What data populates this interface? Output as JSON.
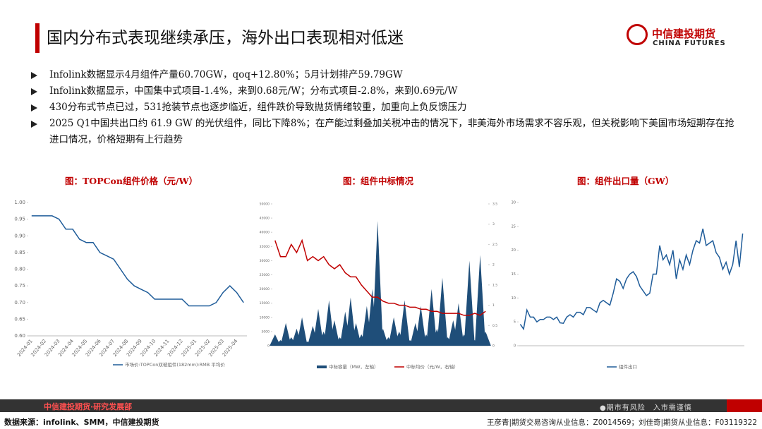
{
  "header": {
    "title": "国内分布式表现继续承压，海外出口表现相对低迷",
    "logo_name": "中信建投期货",
    "logo_en": "CHINA FUTURES"
  },
  "bullets": [
    "Infolink数据显示4月组件产量60.70GW，qoq+12.80%；5月计划排产59.79GW",
    "Infolink数据显示，中国集中式项目-1.4%，来到0.68元/W；分布式项目-2.8%，来到0.69元/W",
    "430分布式节点已过，531抢装节点也逐步临近，组件跌价导致抛货情绪较重，加重向上负反馈压力",
    "2025 Q1中国共出口约 61.9 GW 的光伏组件，同比下降8%；在产能过剩叠加关税冲击的情况下，非美海外市场需求不容乐观，但关税影响下美国市场短期存在抢进口情况，价格短期有上行趋势"
  ],
  "chart_data": [
    {
      "type": "line",
      "title": "图：TOPCon组件价格（元/W）",
      "categories": [
        "2024-01",
        null,
        "2024-02",
        null,
        "2024-03",
        null,
        "2024-04",
        null,
        "2024-05",
        null,
        "2024-06",
        null,
        "2024-07",
        null,
        "2024-08",
        null,
        "2024-09",
        null,
        "2024-10",
        null,
        "2024-11",
        null,
        "2024-12",
        null,
        "2025-01",
        null,
        "2025-02",
        null,
        "2025-03",
        null,
        "2025-04",
        null
      ],
      "series": [
        {
          "name": "市场价:TOPCon双玻组件(182mm):RMB 平均价",
          "color": "#1f5c99",
          "values": [
            0.96,
            0.96,
            0.96,
            0.96,
            0.95,
            0.92,
            0.92,
            0.89,
            0.88,
            0.88,
            0.85,
            0.84,
            0.83,
            0.8,
            0.77,
            0.75,
            0.74,
            0.73,
            0.71,
            0.71,
            0.71,
            0.71,
            0.71,
            0.69,
            0.69,
            0.69,
            0.69,
            0.7,
            0.73,
            0.75,
            0.73,
            0.7
          ]
        }
      ],
      "ylim": [
        0.6,
        1.0
      ],
      "yticks": [
        {
          "value": 0.6,
          "label": "0.60"
        },
        {
          "value": 0.65,
          "label": "0.65"
        },
        {
          "value": 0.7,
          "label": "0.70"
        },
        {
          "value": 0.75,
          "label": "0.75"
        },
        {
          "value": 0.8,
          "label": "0.80"
        },
        {
          "value": 0.85,
          "label": "0.85"
        },
        {
          "value": 0.9,
          "label": "0.90"
        },
        {
          "value": 0.95,
          "label": "0.95"
        },
        {
          "value": 1.0,
          "label": "1.00"
        }
      ]
    },
    {
      "type": "combo",
      "title": "图：组件中标情况",
      "categories": [
        null,
        null,
        null,
        null,
        null,
        null,
        null,
        null,
        null,
        null,
        null,
        null,
        null,
        null,
        null,
        null,
        null,
        null,
        null,
        null,
        null,
        null,
        null,
        null,
        null,
        null,
        null,
        null,
        null,
        null,
        null,
        null,
        null,
        null,
        null,
        null,
        null,
        null,
        null,
        null
      ],
      "series": [
        {
          "name": "中标容量（MW，左轴）",
          "color": "#1f4e79",
          "type": "bar",
          "values": [
            4000,
            2000,
            8000,
            3000,
            6000,
            10000,
            1500,
            7000,
            13000,
            5000,
            16000,
            9000,
            3000,
            12000,
            17000,
            8000,
            4000,
            14000,
            20000,
            44000,
            6000,
            3000,
            10000,
            5000,
            16000,
            2000,
            8000,
            14000,
            4000,
            20000,
            6000,
            24000,
            3000,
            9000,
            15000,
            4000,
            30000,
            2000,
            32000,
            5000
          ]
        },
        {
          "name": "中标均价（元/W，右轴）",
          "color": "#c00000",
          "type": "line",
          "axis": "y2",
          "values": [
            2.6,
            2.2,
            2.2,
            2.5,
            2.3,
            2.6,
            2.1,
            2.2,
            2.1,
            2.2,
            2.0,
            1.9,
            2.0,
            1.8,
            1.7,
            1.7,
            1.5,
            1.35,
            1.2,
            1.2,
            1.1,
            1.05,
            1.05,
            1.0,
            1.0,
            0.95,
            0.95,
            0.9,
            0.9,
            0.85,
            0.85,
            0.8,
            0.8,
            0.8,
            0.8,
            0.75,
            0.75,
            0.8,
            0.75,
            0.85
          ]
        }
      ],
      "ylim": [
        0,
        50000
      ],
      "yticks": [
        0,
        5000,
        10000,
        15000,
        20000,
        25000,
        30000,
        35000,
        40000,
        45000,
        50000
      ],
      "y2lim": [
        0,
        3.5
      ],
      "y2ticks": [
        0,
        0.5,
        1,
        1.5,
        2,
        2.5,
        3,
        3.5
      ]
    },
    {
      "type": "line",
      "title": "图：组件出口量（GW）",
      "categories": [
        null,
        null,
        null,
        null,
        null,
        null,
        null,
        null,
        null,
        null,
        null,
        null,
        null,
        null,
        null,
        null,
        null,
        null,
        null,
        null,
        null,
        null,
        null,
        null,
        null,
        null,
        null,
        null,
        null,
        null,
        null,
        null,
        null,
        null,
        null,
        null,
        null,
        null,
        null,
        null,
        null,
        null,
        null,
        null,
        null,
        null,
        null,
        null,
        null,
        null,
        null,
        null,
        null,
        null,
        null,
        null,
        null,
        null,
        null,
        null,
        null,
        null,
        null,
        null,
        null,
        null,
        null,
        null
      ],
      "series": [
        {
          "name": "组件出口",
          "color": "#1f5c99",
          "values": [
            4.5,
            3.5,
            7.5,
            6,
            6,
            5,
            5.5,
            5.5,
            6,
            6,
            5.5,
            6,
            4.8,
            4.7,
            6,
            6.5,
            6,
            7,
            7,
            6.5,
            8,
            8,
            7.5,
            7,
            9,
            9.5,
            9,
            8.5,
            11,
            14,
            13.5,
            12,
            14,
            15,
            15.5,
            14.5,
            12.5,
            11.5,
            10.5,
            11,
            15,
            15,
            21,
            18,
            19,
            17,
            20,
            14,
            18,
            16,
            19,
            17,
            20,
            22,
            21.5,
            24.5,
            21,
            21.5,
            22,
            19.5,
            18.5,
            16,
            17.5,
            15,
            17,
            22,
            16.5,
            23.5
          ]
        }
      ],
      "ylim": [
        0,
        30
      ],
      "yticks": [
        0,
        5,
        10,
        15,
        20,
        25,
        30
      ]
    }
  ],
  "footer": {
    "dept": "中信建投期货·研究发展部",
    "risk": "●期市有风险　入市需谨慎",
    "source": "数据来源：infolink、SMM，中信建投期货",
    "authors": "王彦青|期货交易咨询从业信息：Z0014569；刘佳奇|期货从业信息：F03119322"
  }
}
